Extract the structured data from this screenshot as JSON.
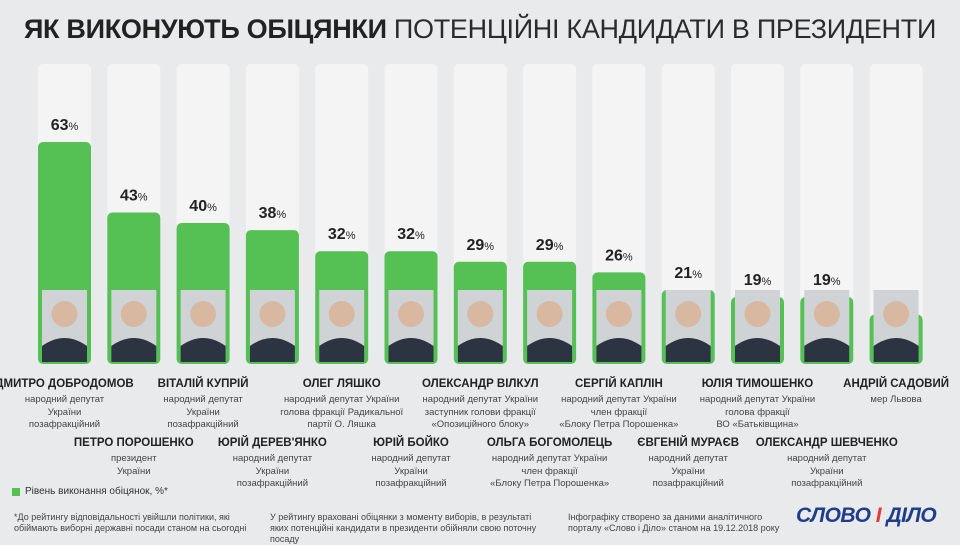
{
  "header": {
    "title_bold": "ЯК ВИКОНУЮТЬ ОБІЦЯНКИ",
    "title_rest": "ПОТЕНЦІЙНІ КАНДИДАТИ В ПРЕЗИДЕНТИ"
  },
  "chart_data": {
    "type": "bar",
    "title": "ЯК ВИКОНУЮТЬ ОБІЦЯНКИ ПОТЕНЦІЙНІ КАНДИДАТИ В ПРЕЗИДЕНТИ",
    "ylabel": "Рівень виконання обіцянок, %",
    "ylim": [
      0,
      100
    ],
    "unit": "%",
    "categories": [
      "ДМИТРО ДОБРОДОМОВ",
      "ПЕТРО ПОРОШЕНКО",
      "ВІТАЛІЙ КУПРІЙ",
      "ЮРІЙ ДЕРЕВ'ЯНКО",
      "ОЛЕГ ЛЯШКО",
      "ЮРІЙ БОЙКО",
      "ОЛЕКСАНДР ВІЛКУЛ",
      "ОЛЬГА БОГОМОЛЕЦЬ",
      "СЕРГІЙ КАПЛІН",
      "ЄВГЕНІЙ МУРАЄВ",
      "ЮЛІЯ ТИМОШЕНКО",
      "ОЛЕКСАНДР ШЕВЧЕНКО",
      "АНДРІЙ САДОВИЙ"
    ],
    "values": [
      63,
      43,
      40,
      38,
      32,
      32,
      29,
      29,
      26,
      21,
      19,
      19,
      14
    ]
  },
  "candidates": [
    {
      "name": "ДМИТРО ДОБРОДОМОВ",
      "desc": "народний депутат\nУкраїни\nпозафракційний"
    },
    {
      "name": "ПЕТРО ПОРОШЕНКО",
      "desc": "президент\nУкраїни"
    },
    {
      "name": "ВІТАЛІЙ КУПРІЙ",
      "desc": "народний депутат\nУкраїни\nпозафракційний"
    },
    {
      "name": "ЮРІЙ ДЕРЕВ'ЯНКО",
      "desc": "народний депутат\nУкраїни\nпозафракційний"
    },
    {
      "name": "ОЛЕГ ЛЯШКО",
      "desc": "народний депутат України\nголова фракції Радикальної\nпартії О. Ляшка"
    },
    {
      "name": "ЮРІЙ БОЙКО",
      "desc": "народний депутат\nУкраїни\nпозафракційний"
    },
    {
      "name": "ОЛЕКСАНДР ВІЛКУЛ",
      "desc": "народний депутат України\nзаступник голови фракції\n«Опозиційного блоку»"
    },
    {
      "name": "ОЛЬГА БОГОМОЛЕЦЬ",
      "desc": "народний депутат України\nчлен фракції\n«Блоку Петра Порошенка»"
    },
    {
      "name": "СЕРГІЙ КАПЛІН",
      "desc": "народний депутат України\nчлен фракції\n«Блоку Петра Порошенка»"
    },
    {
      "name": "ЄВГЕНІЙ МУРАЄВ",
      "desc": "народний депутат\nУкраїни\nпозафракційний"
    },
    {
      "name": "ЮЛІЯ ТИМОШЕНКО",
      "desc": "народний депутат України\nголова фракції\nВО «Батьківщина»"
    },
    {
      "name": "ОЛЕКСАНДР ШЕВЧЕНКО",
      "desc": "народний депутат\nУкраїни\nпозафракційний"
    },
    {
      "name": "АНДРІЙ САДОВИЙ",
      "desc": "мер Львова"
    }
  ],
  "legend": {
    "label": "Рівень виконання обіцянок, %*"
  },
  "footer": {
    "note1": "*До рейтингу відповідальності увійшли політики, які обіймають виборні державні посади станом на сьогодні",
    "note2": "У рейтингу враховані обіцянки з моменту виборів, в результаті яких потенційні кандидати в президенти обійняли свою поточну посаду",
    "note3": "Інфографіку створено за даними аналітичного порталу «Слово і Діло» станом на 19.12.2018 року"
  },
  "logo": {
    "part1": "СЛОВО",
    "amp": "І",
    "part2": "ДІЛО"
  },
  "colors": {
    "bar": "#55c155",
    "track": "#f4f4f4",
    "background": "#e8eaec"
  }
}
